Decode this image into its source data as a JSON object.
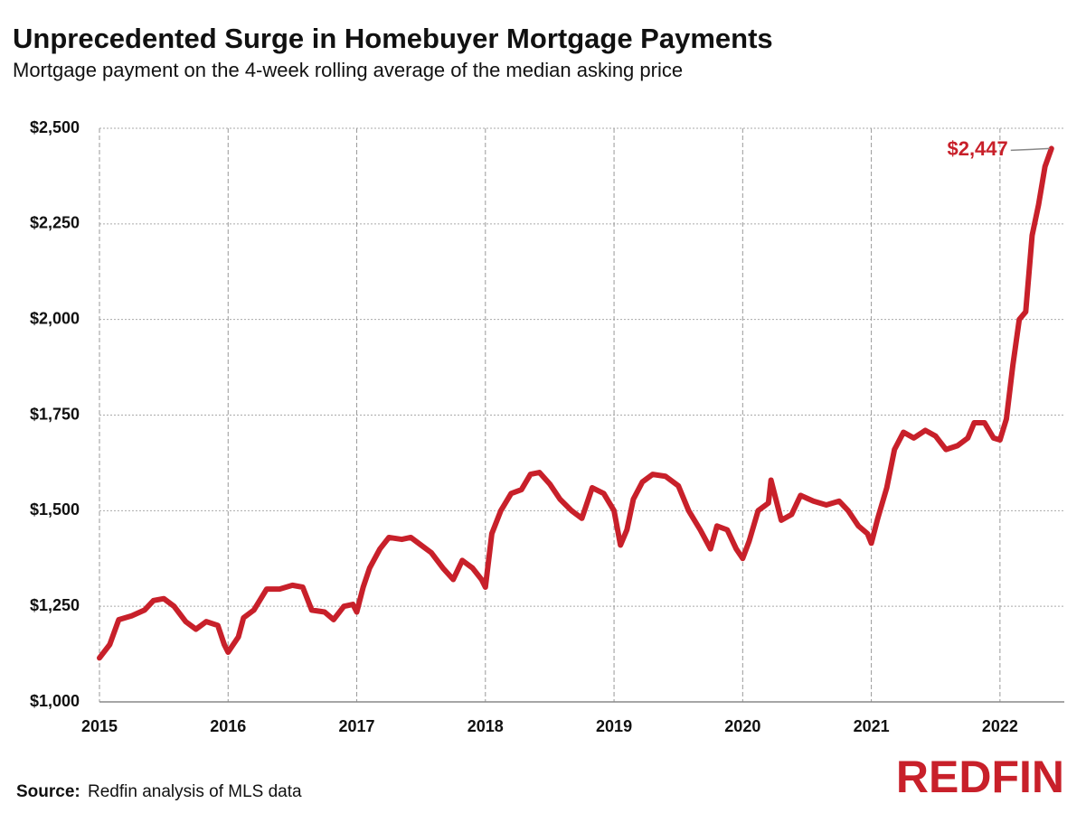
{
  "chart_data": {
    "type": "line",
    "title": "Unprecedented Surge in Homebuyer Mortgage Payments",
    "subtitle": "Mortgage payment on the 4-week rolling average of the median asking price",
    "annotation": "$2,447",
    "source_label": "Source:",
    "source_text": "Redfin analysis of MLS data",
    "logo": "REDFIN",
    "xlim": [
      2015,
      2022.5
    ],
    "xticks": [
      2015,
      2016,
      2017,
      2018,
      2019,
      2020,
      2021,
      2022
    ],
    "ylim": [
      1000,
      2500
    ],
    "yticks": [
      {
        "value": 1000,
        "label": "$1,000"
      },
      {
        "value": 1250,
        "label": "$1,250"
      },
      {
        "value": 1500,
        "label": "$1,500"
      },
      {
        "value": 1750,
        "label": "$1,750"
      },
      {
        "value": 2000,
        "label": "$2,000"
      },
      {
        "value": 2250,
        "label": "$2,250"
      },
      {
        "value": 2500,
        "label": "$2,500"
      }
    ],
    "grid": true,
    "x": [
      2015.0,
      2015.08,
      2015.15,
      2015.25,
      2015.35,
      2015.42,
      2015.5,
      2015.58,
      2015.67,
      2015.75,
      2015.83,
      2015.92,
      2015.97,
      2016.0,
      2016.08,
      2016.12,
      2016.2,
      2016.3,
      2016.4,
      2016.5,
      2016.58,
      2016.65,
      2016.75,
      2016.82,
      2016.9,
      2016.97,
      2017.0,
      2017.05,
      2017.1,
      2017.18,
      2017.25,
      2017.35,
      2017.42,
      2017.5,
      2017.58,
      2017.67,
      2017.75,
      2017.82,
      2017.9,
      2017.97,
      2018.0,
      2018.05,
      2018.12,
      2018.2,
      2018.28,
      2018.35,
      2018.42,
      2018.5,
      2018.58,
      2018.67,
      2018.75,
      2018.83,
      2018.92,
      2019.0,
      2019.05,
      2019.1,
      2019.15,
      2019.22,
      2019.3,
      2019.4,
      2019.5,
      2019.58,
      2019.67,
      2019.75,
      2019.8,
      2019.88,
      2019.95,
      2020.0,
      2020.05,
      2020.12,
      2020.2,
      2020.22,
      2020.3,
      2020.38,
      2020.45,
      2020.55,
      2020.65,
      2020.75,
      2020.82,
      2020.9,
      2020.97,
      2021.0,
      2021.05,
      2021.12,
      2021.18,
      2021.25,
      2021.33,
      2021.42,
      2021.5,
      2021.58,
      2021.67,
      2021.75,
      2021.8,
      2021.88,
      2021.95,
      2022.0,
      2022.05,
      2022.1,
      2022.15,
      2022.2,
      2022.25,
      2022.3,
      2022.35,
      2022.4
    ],
    "series": [
      {
        "name": "Mortgage payment",
        "color": "#c8202a",
        "values": [
          1115,
          1150,
          1215,
          1225,
          1240,
          1265,
          1270,
          1250,
          1210,
          1190,
          1210,
          1200,
          1150,
          1130,
          1170,
          1220,
          1240,
          1295,
          1295,
          1305,
          1300,
          1240,
          1235,
          1215,
          1250,
          1255,
          1235,
          1300,
          1350,
          1400,
          1430,
          1425,
          1430,
          1410,
          1390,
          1350,
          1320,
          1370,
          1350,
          1320,
          1300,
          1440,
          1500,
          1545,
          1555,
          1595,
          1600,
          1570,
          1530,
          1500,
          1480,
          1560,
          1545,
          1500,
          1410,
          1450,
          1530,
          1575,
          1595,
          1590,
          1565,
          1500,
          1450,
          1400,
          1460,
          1450,
          1400,
          1375,
          1420,
          1500,
          1520,
          1580,
          1475,
          1490,
          1540,
          1525,
          1515,
          1525,
          1500,
          1460,
          1440,
          1415,
          1480,
          1560,
          1660,
          1705,
          1690,
          1710,
          1695,
          1660,
          1670,
          1690,
          1730,
          1730,
          1690,
          1685,
          1740,
          1880,
          2000,
          2020,
          2220,
          2300,
          2400,
          2447
        ]
      }
    ]
  }
}
